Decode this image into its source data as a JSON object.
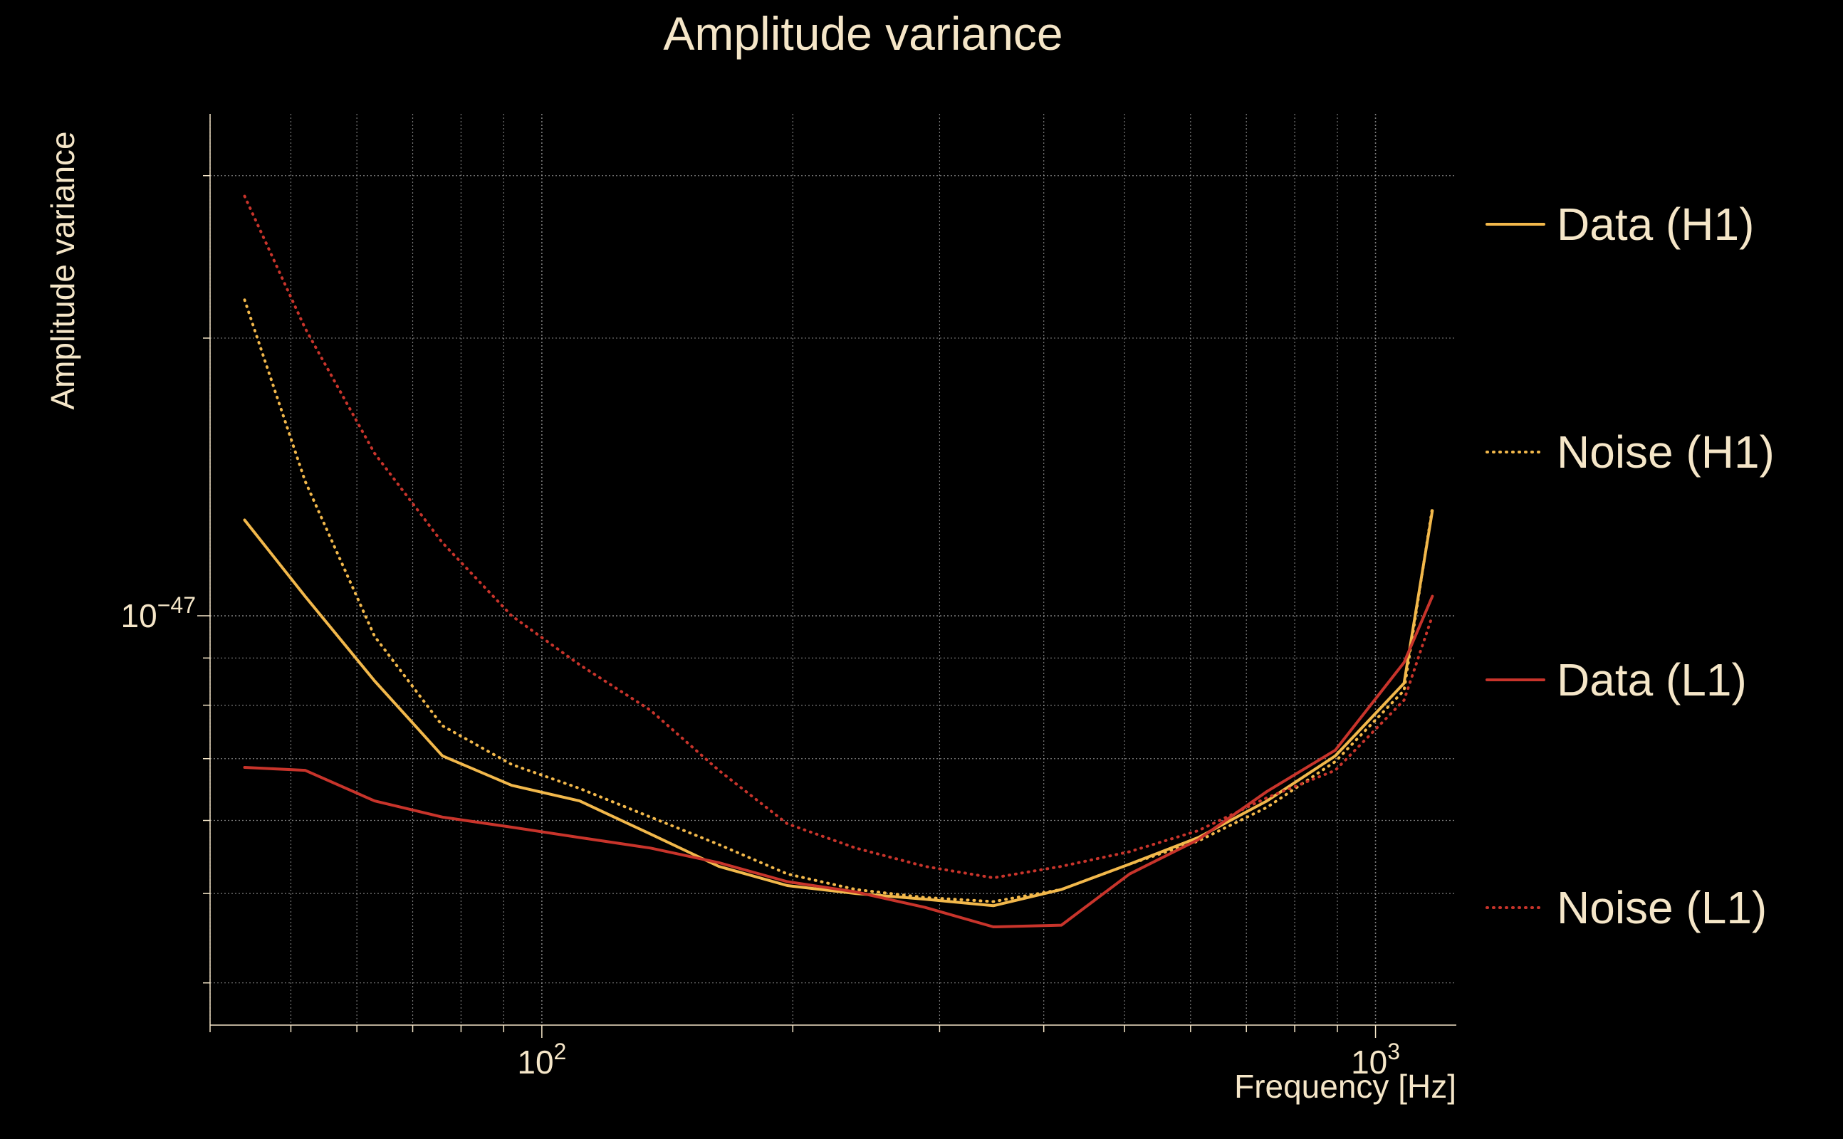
{
  "chart_data": {
    "type": "line",
    "title": "Amplitude variance",
    "xlabel": "Frequency [Hz]",
    "ylabel": "Amplitude variance",
    "x_scale": "log",
    "y_scale": "log",
    "xlim": [
      40,
      1250
    ],
    "ylim": [
      3.6e-48,
      3.5e-47
    ],
    "grid": true,
    "legend_position": "right",
    "x_ticks": [
      {
        "value": 100,
        "base": "10",
        "exp": "2"
      },
      {
        "value": 1000,
        "base": "10",
        "exp": "3"
      }
    ],
    "y_ticks": [
      {
        "value": 1e-47,
        "base": "10",
        "exp": "−47"
      }
    ],
    "colors": {
      "h1": "#f2b84b",
      "l1": "#c8342b",
      "text": "#f5e6c8",
      "grid": "#9a9a9a"
    },
    "series": [
      {
        "name": "Data (H1)",
        "color": "#f2b84b",
        "style": "solid",
        "x": [
          44,
          52,
          63,
          76,
          92,
          111,
          135,
          163,
          197,
          238,
          288,
          348,
          420,
          507,
          613,
          741,
          895,
          1082,
          1170
        ],
        "y": [
          1.27e-47,
          1.05e-47,
          8.5e-48,
          7.05e-48,
          6.55e-48,
          6.3e-48,
          5.8e-48,
          5.35e-48,
          5.1e-48,
          5e-48,
          4.93e-48,
          4.85e-48,
          5.05e-48,
          5.38e-48,
          5.75e-48,
          6.3e-48,
          7.05e-48,
          8.45e-48,
          1.3e-47
        ]
      },
      {
        "name": "Noise (H1)",
        "color": "#f2b84b",
        "style": "dotted",
        "x": [
          44,
          52,
          63,
          76,
          92,
          111,
          135,
          163,
          197,
          238,
          288,
          348,
          420,
          507,
          613,
          741,
          895,
          1082,
          1170
        ],
        "y": [
          2.2e-47,
          1.4e-47,
          9.5e-48,
          7.6e-48,
          6.9e-48,
          6.5e-48,
          6.05e-48,
          5.65e-48,
          5.25e-48,
          5.05e-48,
          4.95e-48,
          4.9e-48,
          5.05e-48,
          5.38e-48,
          5.7e-48,
          6.2e-48,
          6.95e-48,
          8.3e-48,
          1.31e-47
        ]
      },
      {
        "name": "Data (L1)",
        "color": "#c8342b",
        "style": "solid",
        "x": [
          44,
          52,
          63,
          76,
          92,
          111,
          135,
          163,
          197,
          238,
          288,
          348,
          420,
          507,
          613,
          741,
          895,
          1082,
          1170
        ],
        "y": [
          6.85e-48,
          6.8e-48,
          6.3e-48,
          6.05e-48,
          5.9e-48,
          5.75e-48,
          5.6e-48,
          5.4e-48,
          5.15e-48,
          5.02e-48,
          4.83e-48,
          4.6e-48,
          4.62e-48,
          5.25e-48,
          5.72e-48,
          6.45e-48,
          7.15e-48,
          8.9e-48,
          1.05e-47
        ]
      },
      {
        "name": "Noise (L1)",
        "color": "#c8342b",
        "style": "dotted",
        "x": [
          44,
          52,
          63,
          76,
          92,
          111,
          135,
          163,
          197,
          238,
          288,
          348,
          420,
          507,
          613,
          741,
          895,
          1082,
          1170
        ],
        "y": [
          2.85e-47,
          2.05e-47,
          1.5e-47,
          1.2e-47,
          1e-47,
          8.85e-48,
          7.9e-48,
          6.8e-48,
          5.95e-48,
          5.6e-48,
          5.35e-48,
          5.2e-48,
          5.35e-48,
          5.55e-48,
          5.85e-48,
          6.35e-48,
          6.8e-48,
          8.1e-48,
          1e-47
        ]
      }
    ]
  }
}
